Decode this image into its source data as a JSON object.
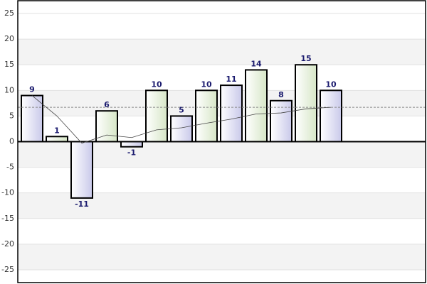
{
  "chart_data": {
    "type": "bar",
    "values": [
      9,
      1,
      -11,
      6,
      -1,
      10,
      5,
      10,
      11,
      14,
      8,
      15,
      10
    ],
    "colors": [
      "#c9c9ea",
      "#d6e6c6"
    ],
    "trend": [
      9,
      5,
      -0.3,
      1.3,
      0.8,
      2.3,
      2.7,
      3.6,
      4.4,
      5.4,
      5.6,
      6.4,
      6.7
    ],
    "mean_line": 6.7,
    "ylim": [
      -27.5,
      27.5
    ],
    "yticks": [
      -25,
      -20,
      -15,
      -10,
      -5,
      0,
      5,
      10,
      15,
      20,
      25
    ],
    "grid": true
  }
}
